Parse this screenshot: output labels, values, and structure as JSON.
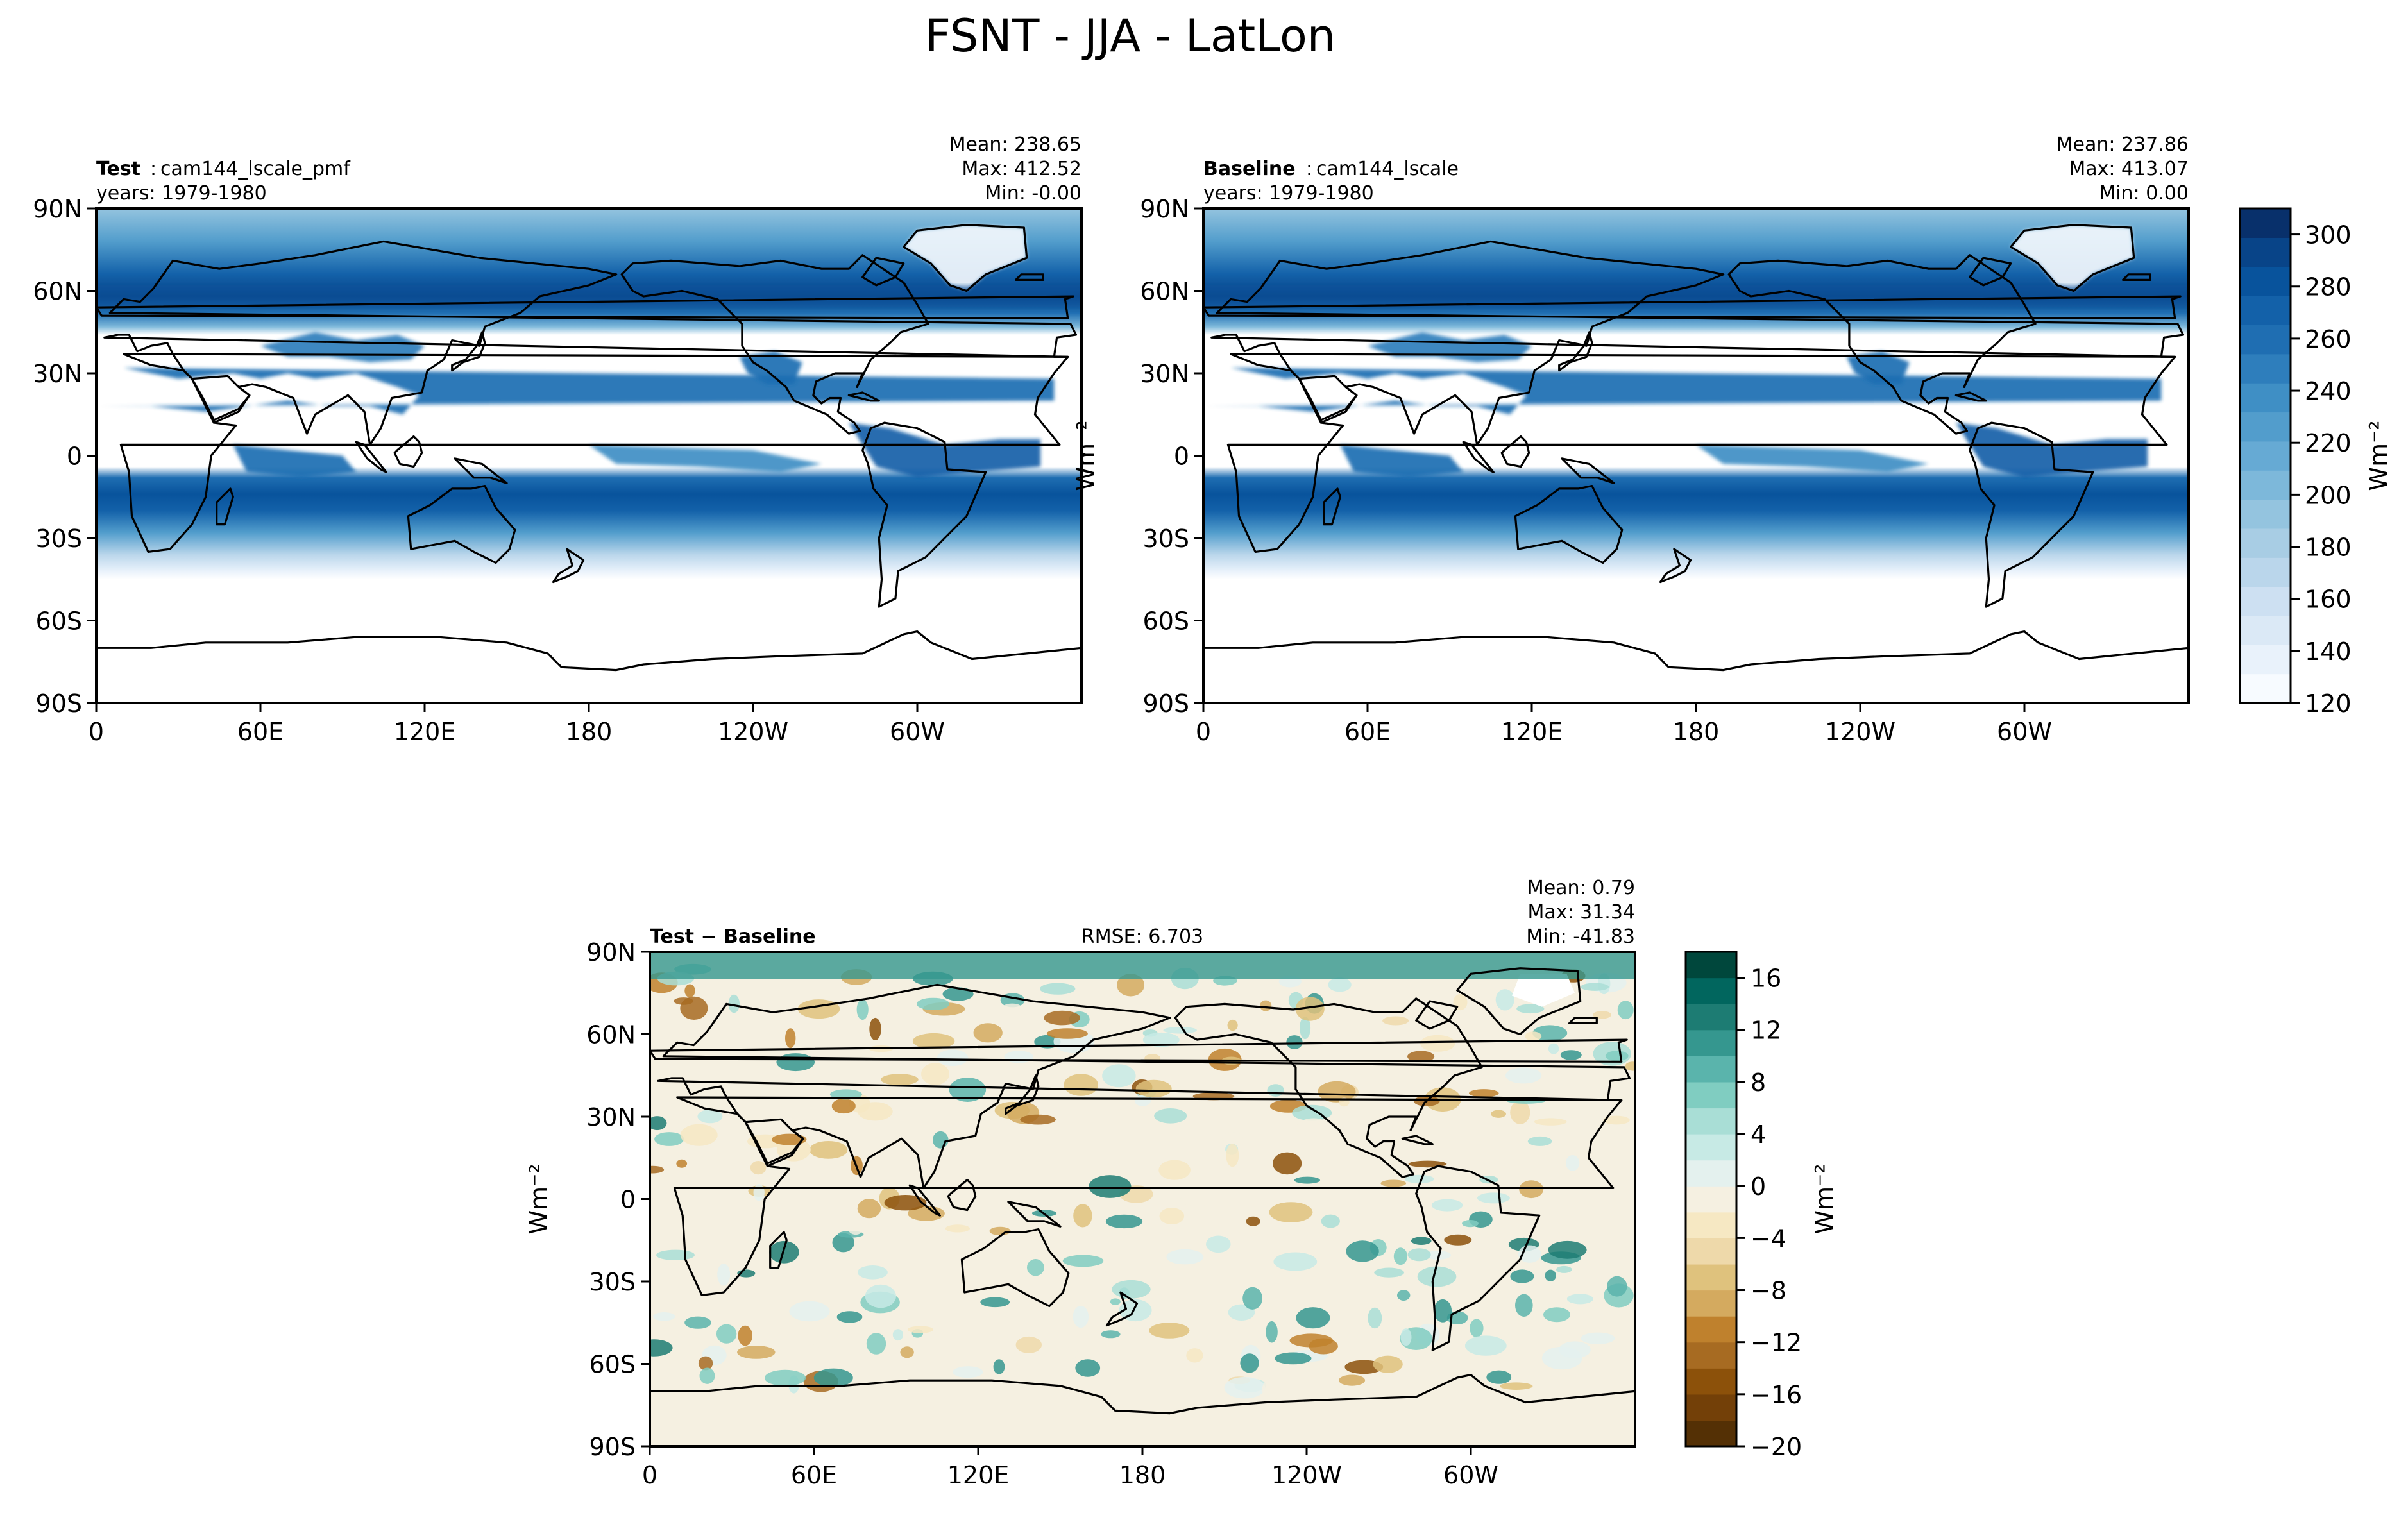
{
  "figure": {
    "title": "FSNT - JJA - LatLon"
  },
  "chart_data": [
    {
      "id": "test",
      "type": "heatmap",
      "subtitle_bold": "Test",
      "subtitle_name": "cam144_lscale_pmf",
      "years": "years: 1979-1980",
      "stats": [
        "Mean: 238.65",
        "Max: 412.52",
        "Min: -0.00"
      ],
      "ylabel": "",
      "xticks": [
        "0",
        "60E",
        "120E",
        "180",
        "120W",
        "60W"
      ],
      "yticks": [
        "90N",
        "60N",
        "30N",
        "0",
        "30S",
        "60S",
        "90S"
      ],
      "colormap": "Blues"
    },
    {
      "id": "baseline",
      "type": "heatmap",
      "subtitle_bold": "Baseline",
      "subtitle_name": "cam144_lscale",
      "years": "years: 1979-1980",
      "stats": [
        "Mean: 237.86",
        "Max: 413.07",
        "Min:  0.00"
      ],
      "ylabel": "Wm⁻²",
      "xticks": [
        "0",
        "60E",
        "120E",
        "180",
        "120W",
        "60W"
      ],
      "yticks": [
        "90N",
        "60N",
        "30N",
        "0",
        "30S",
        "60S",
        "90S"
      ],
      "colormap": "Blues"
    },
    {
      "id": "diff",
      "type": "heatmap",
      "subtitle_left": "Test − Baseline",
      "rmse": "RMSE: 6.703",
      "stats": [
        "Mean:  0.79",
        "Max: 31.34",
        "Min: -41.83"
      ],
      "ylabel": "Wm⁻²",
      "xticks": [
        "0",
        "60E",
        "120E",
        "180",
        "120W",
        "60W"
      ],
      "yticks": [
        "90N",
        "60N",
        "30N",
        "0",
        "30S",
        "60S",
        "90S"
      ],
      "colormap": "BrBG"
    }
  ],
  "colorbars": {
    "top": {
      "label": "Wm⁻²",
      "vmin": 120,
      "vmax": 310,
      "ticks": [
        "120",
        "140",
        "160",
        "180",
        "200",
        "220",
        "240",
        "260",
        "280",
        "300"
      ],
      "tick_values": [
        120,
        140,
        160,
        180,
        200,
        220,
        240,
        260,
        280,
        300
      ],
      "colors": [
        "#f7fbff",
        "#e9f2fb",
        "#dbe9f6",
        "#cde0f2",
        "#bad6eb",
        "#a8cde4",
        "#94c4df",
        "#7db8da",
        "#66aad4",
        "#529dcc",
        "#3f8fc5",
        "#2e7ebc",
        "#1f6eb2",
        "#1361a9",
        "#08539c",
        "#084488",
        "#08306b"
      ]
    },
    "diff": {
      "label": "Wm⁻²",
      "vmin": -20,
      "vmax": 18,
      "ticks": [
        "−20",
        "−16",
        "−12",
        "−8",
        "−4",
        "0",
        "4",
        "8",
        "12",
        "16"
      ],
      "tick_values": [
        -20,
        -16,
        -12,
        -8,
        -4,
        0,
        4,
        8,
        12,
        16
      ],
      "colors": [
        "#543005",
        "#734008",
        "#8c510a",
        "#a76b22",
        "#bf812d",
        "#d4aa5f",
        "#dfc27d",
        "#eed9aa",
        "#f6e8c3",
        "#f5f0e1",
        "#e4f1ee",
        "#c7eae5",
        "#a9ded6",
        "#80cdc1",
        "#5ab4ac",
        "#35978f",
        "#1d7c73",
        "#01665e",
        "#00473c"
      ]
    }
  }
}
